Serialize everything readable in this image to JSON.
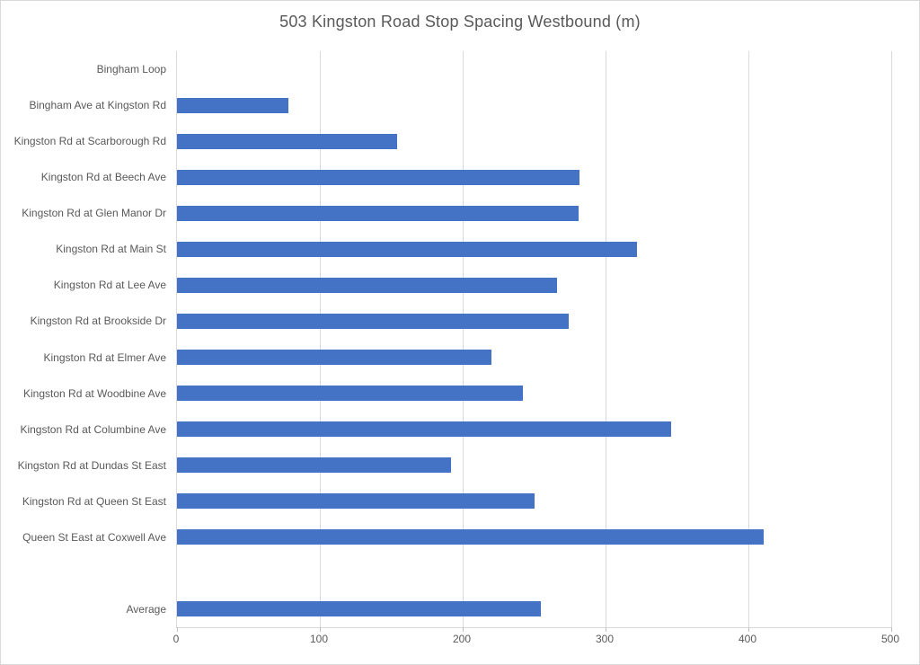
{
  "page": {
    "title": "503 Kingston Road Stop Spacing Westbound (m)"
  },
  "chart_data": {
    "type": "bar",
    "orientation": "horizontal",
    "title": "503 Kingston Road Stop Spacing Westbound (m)",
    "categories": [
      "Bingham Loop",
      "Bingham Ave at Kingston Rd",
      "Kingston Rd at Scarborough Rd",
      "Kingston Rd at Beech Ave",
      "Kingston Rd at Glen Manor Dr",
      "Kingston Rd at Main St",
      "Kingston Rd at Lee Ave",
      "Kingston Rd at Brookside Dr",
      "Kingston Rd at Elmer Ave",
      "Kingston Rd at Woodbine Ave",
      "Kingston Rd at Columbine Ave",
      "Kingston Rd at Dundas St East",
      "Kingston Rd at Queen St East",
      "Queen St East at Coxwell Ave",
      "",
      "Average"
    ],
    "values": [
      0,
      78,
      154,
      282,
      281,
      322,
      266,
      274,
      220,
      242,
      346,
      192,
      250,
      411,
      null,
      255
    ],
    "xlabel": "",
    "ylabel": "",
    "xlim": [
      0,
      500
    ],
    "xticks": [
      0,
      100,
      200,
      300,
      400,
      500
    ],
    "grid": true,
    "legend": false,
    "colors": {
      "bar": "#4472C4",
      "grid": "#D9D9D9",
      "axis": "#BFBFBF",
      "text": "#595959",
      "background": "#FFFFFF"
    }
  }
}
